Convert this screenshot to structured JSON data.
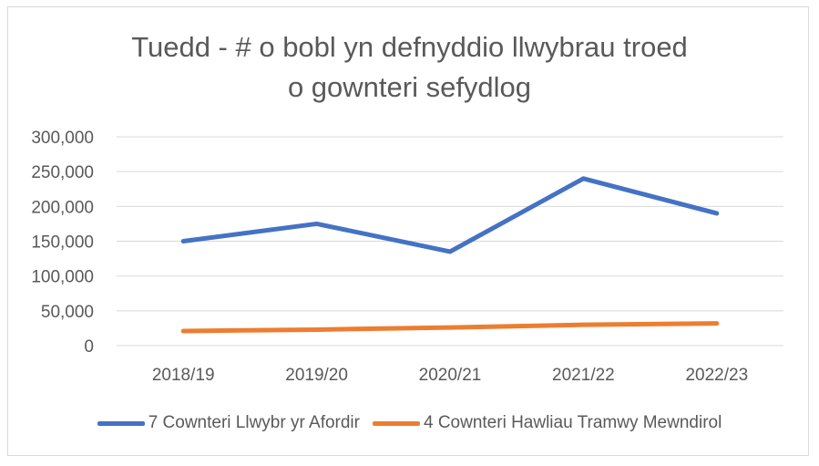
{
  "chart_data": {
    "type": "line",
    "title": [
      "Tuedd - # o bobl yn defnyddio llwybrau troed",
      "o gownteri sefydlog"
    ],
    "categories": [
      "2018/19",
      "2019/20",
      "2020/21",
      "2021/22",
      "2022/23"
    ],
    "series": [
      {
        "name": "7 Cownteri Llwybr yr Afordir",
        "color": "#4472C4",
        "values": [
          150000,
          175000,
          135000,
          240000,
          190000
        ]
      },
      {
        "name": "4 Cownteri Hawliau Tramwy Mewndirol",
        "color": "#ED7D31",
        "values": [
          21000,
          23000,
          26000,
          30000,
          32000
        ]
      }
    ],
    "yticks": [
      "0",
      "50,000",
      "100,000",
      "150,000",
      "200,000",
      "250,000",
      "300,000"
    ],
    "ylim": [
      0,
      300000
    ],
    "grid": true,
    "legend_position": "bottom"
  }
}
